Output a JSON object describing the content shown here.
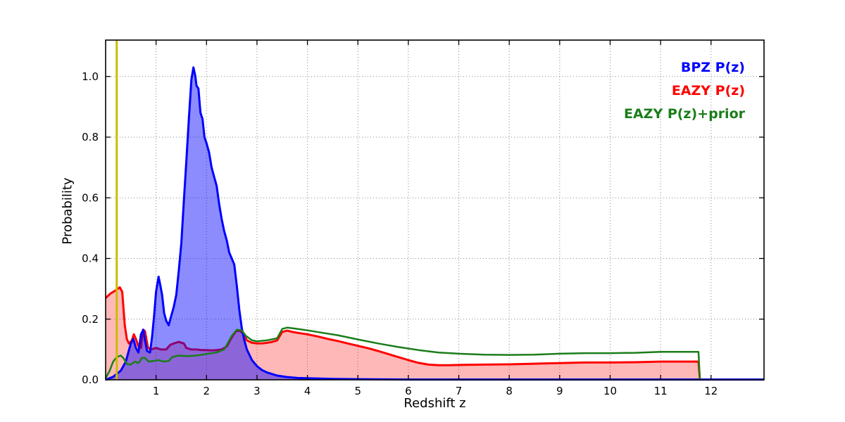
{
  "chart_data": {
    "type": "line",
    "title": "",
    "xlabel": "Redshift z",
    "ylabel": "Probability",
    "xlim": [
      0,
      13.05
    ],
    "ylim": [
      0,
      1.12
    ],
    "grid": "dotted",
    "legend_position": "top-right-inside",
    "xticks": [
      1,
      2,
      3,
      4,
      5,
      6,
      7,
      8,
      9,
      10,
      11,
      12
    ],
    "xtick_labels": [
      "1",
      "2",
      "3",
      "4",
      "5",
      "6",
      "7",
      "8",
      "9",
      "10",
      "11",
      "12"
    ],
    "yticks": [
      0,
      0.2,
      0.4,
      0.6,
      0.8,
      1.0
    ],
    "ytick_labels": [
      "0.0",
      "0.2",
      "0.4",
      "0.6",
      "0.8",
      "1.0"
    ],
    "vline": {
      "x": 0.22,
      "color": "#c9bd00",
      "width": 3
    },
    "series": [
      {
        "key": "bpz",
        "name": "BPZ P(z)",
        "color": "#0000ff",
        "fill": "rgba(0,0,255,0.45)",
        "width": 3,
        "points": [
          [
            0,
            0
          ],
          [
            0.15,
            0.01
          ],
          [
            0.3,
            0.03
          ],
          [
            0.4,
            0.06
          ],
          [
            0.45,
            0.09
          ],
          [
            0.5,
            0.12
          ],
          [
            0.55,
            0.135
          ],
          [
            0.6,
            0.105
          ],
          [
            0.65,
            0.09
          ],
          [
            0.7,
            0.15
          ],
          [
            0.75,
            0.165
          ],
          [
            0.78,
            0.13
          ],
          [
            0.82,
            0.095
          ],
          [
            0.88,
            0.09
          ],
          [
            0.92,
            0.14
          ],
          [
            0.96,
            0.21
          ],
          [
            1.0,
            0.29
          ],
          [
            1.05,
            0.34
          ],
          [
            1.08,
            0.315
          ],
          [
            1.12,
            0.28
          ],
          [
            1.16,
            0.22
          ],
          [
            1.2,
            0.195
          ],
          [
            1.25,
            0.18
          ],
          [
            1.3,
            0.21
          ],
          [
            1.35,
            0.24
          ],
          [
            1.4,
            0.28
          ],
          [
            1.45,
            0.36
          ],
          [
            1.5,
            0.45
          ],
          [
            1.55,
            0.59
          ],
          [
            1.6,
            0.72
          ],
          [
            1.65,
            0.86
          ],
          [
            1.7,
            0.99
          ],
          [
            1.74,
            1.03
          ],
          [
            1.78,
            1.0
          ],
          [
            1.8,
            0.97
          ],
          [
            1.84,
            0.96
          ],
          [
            1.88,
            0.88
          ],
          [
            1.92,
            0.86
          ],
          [
            1.96,
            0.8
          ],
          [
            2.0,
            0.78
          ],
          [
            2.05,
            0.75
          ],
          [
            2.1,
            0.7
          ],
          [
            2.15,
            0.67
          ],
          [
            2.2,
            0.64
          ],
          [
            2.25,
            0.58
          ],
          [
            2.3,
            0.53
          ],
          [
            2.35,
            0.49
          ],
          [
            2.4,
            0.46
          ],
          [
            2.45,
            0.42
          ],
          [
            2.5,
            0.4
          ],
          [
            2.55,
            0.38
          ],
          [
            2.6,
            0.31
          ],
          [
            2.65,
            0.23
          ],
          [
            2.7,
            0.17
          ],
          [
            2.75,
            0.13
          ],
          [
            2.8,
            0.1
          ],
          [
            2.9,
            0.065
          ],
          [
            3.0,
            0.045
          ],
          [
            3.1,
            0.032
          ],
          [
            3.2,
            0.024
          ],
          [
            3.4,
            0.014
          ],
          [
            3.6,
            0.009
          ],
          [
            3.8,
            0.006
          ],
          [
            4.0,
            0.005
          ],
          [
            4.5,
            0.003
          ],
          [
            5.0,
            0.002
          ],
          [
            6.0,
            0.001
          ],
          [
            8.0,
            0.001
          ],
          [
            13.05,
            0.001
          ]
        ]
      },
      {
        "key": "eazy",
        "name": "EAZY P(z)",
        "color": "#ff0000",
        "fill": "rgba(255,0,0,0.28)",
        "width": 3,
        "points": [
          [
            0,
            0.27
          ],
          [
            0.1,
            0.285
          ],
          [
            0.2,
            0.295
          ],
          [
            0.28,
            0.305
          ],
          [
            0.33,
            0.29
          ],
          [
            0.38,
            0.18
          ],
          [
            0.42,
            0.135
          ],
          [
            0.46,
            0.12
          ],
          [
            0.52,
            0.13
          ],
          [
            0.56,
            0.15
          ],
          [
            0.6,
            0.135
          ],
          [
            0.65,
            0.11
          ],
          [
            0.7,
            0.105
          ],
          [
            0.74,
            0.165
          ],
          [
            0.78,
            0.16
          ],
          [
            0.84,
            0.105
          ],
          [
            0.9,
            0.1
          ],
          [
            1.0,
            0.105
          ],
          [
            1.1,
            0.1
          ],
          [
            1.2,
            0.1
          ],
          [
            1.28,
            0.115
          ],
          [
            1.35,
            0.12
          ],
          [
            1.45,
            0.125
          ],
          [
            1.55,
            0.12
          ],
          [
            1.6,
            0.105
          ],
          [
            1.7,
            0.1
          ],
          [
            1.8,
            0.1
          ],
          [
            1.9,
            0.098
          ],
          [
            2.0,
            0.098
          ],
          [
            2.1,
            0.097
          ],
          [
            2.2,
            0.098
          ],
          [
            2.3,
            0.1
          ],
          [
            2.4,
            0.11
          ],
          [
            2.5,
            0.14
          ],
          [
            2.58,
            0.16
          ],
          [
            2.66,
            0.162
          ],
          [
            2.74,
            0.15
          ],
          [
            2.8,
            0.13
          ],
          [
            2.9,
            0.122
          ],
          [
            3.0,
            0.12
          ],
          [
            3.1,
            0.12
          ],
          [
            3.2,
            0.122
          ],
          [
            3.3,
            0.125
          ],
          [
            3.4,
            0.13
          ],
          [
            3.5,
            0.158
          ],
          [
            3.6,
            0.162
          ],
          [
            3.7,
            0.158
          ],
          [
            3.8,
            0.155
          ],
          [
            4.0,
            0.15
          ],
          [
            4.2,
            0.143
          ],
          [
            4.4,
            0.135
          ],
          [
            4.6,
            0.128
          ],
          [
            4.8,
            0.12
          ],
          [
            5.0,
            0.112
          ],
          [
            5.2,
            0.104
          ],
          [
            5.4,
            0.095
          ],
          [
            5.6,
            0.085
          ],
          [
            5.8,
            0.075
          ],
          [
            6.0,
            0.065
          ],
          [
            6.2,
            0.056
          ],
          [
            6.4,
            0.05
          ],
          [
            6.6,
            0.048
          ],
          [
            6.8,
            0.048
          ],
          [
            7.0,
            0.049
          ],
          [
            7.5,
            0.05
          ],
          [
            8.0,
            0.051
          ],
          [
            8.5,
            0.053
          ],
          [
            9.0,
            0.055
          ],
          [
            9.5,
            0.057
          ],
          [
            10.0,
            0.057
          ],
          [
            10.5,
            0.058
          ],
          [
            11.0,
            0.06
          ],
          [
            11.4,
            0.06
          ],
          [
            11.75,
            0.06
          ],
          [
            11.78,
            0
          ]
        ]
      },
      {
        "key": "eazy_prior",
        "name": "EAZY P(z)+prior",
        "color": "#1a7d1a",
        "fill": "none",
        "width": 2.5,
        "points": [
          [
            0,
            0.005
          ],
          [
            0.08,
            0.03
          ],
          [
            0.15,
            0.06
          ],
          [
            0.22,
            0.075
          ],
          [
            0.3,
            0.08
          ],
          [
            0.36,
            0.07
          ],
          [
            0.42,
            0.052
          ],
          [
            0.5,
            0.05
          ],
          [
            0.58,
            0.06
          ],
          [
            0.65,
            0.055
          ],
          [
            0.72,
            0.072
          ],
          [
            0.78,
            0.072
          ],
          [
            0.85,
            0.06
          ],
          [
            0.95,
            0.062
          ],
          [
            1.05,
            0.065
          ],
          [
            1.15,
            0.06
          ],
          [
            1.25,
            0.062
          ],
          [
            1.32,
            0.075
          ],
          [
            1.45,
            0.08
          ],
          [
            1.6,
            0.078
          ],
          [
            1.8,
            0.08
          ],
          [
            2.0,
            0.085
          ],
          [
            2.2,
            0.09
          ],
          [
            2.35,
            0.1
          ],
          [
            2.5,
            0.145
          ],
          [
            2.6,
            0.165
          ],
          [
            2.7,
            0.163
          ],
          [
            2.78,
            0.145
          ],
          [
            2.9,
            0.13
          ],
          [
            3.0,
            0.127
          ],
          [
            3.2,
            0.13
          ],
          [
            3.4,
            0.137
          ],
          [
            3.5,
            0.168
          ],
          [
            3.6,
            0.172
          ],
          [
            3.8,
            0.168
          ],
          [
            4.0,
            0.163
          ],
          [
            4.3,
            0.155
          ],
          [
            4.6,
            0.147
          ],
          [
            5.0,
            0.133
          ],
          [
            5.4,
            0.12
          ],
          [
            5.8,
            0.108
          ],
          [
            6.2,
            0.098
          ],
          [
            6.6,
            0.09
          ],
          [
            7.0,
            0.086
          ],
          [
            7.5,
            0.083
          ],
          [
            8.0,
            0.082
          ],
          [
            8.5,
            0.083
          ],
          [
            9.0,
            0.086
          ],
          [
            9.5,
            0.088
          ],
          [
            10.0,
            0.088
          ],
          [
            10.5,
            0.089
          ],
          [
            11.0,
            0.092
          ],
          [
            11.4,
            0.092
          ],
          [
            11.75,
            0.092
          ],
          [
            11.78,
            0
          ]
        ]
      }
    ]
  }
}
